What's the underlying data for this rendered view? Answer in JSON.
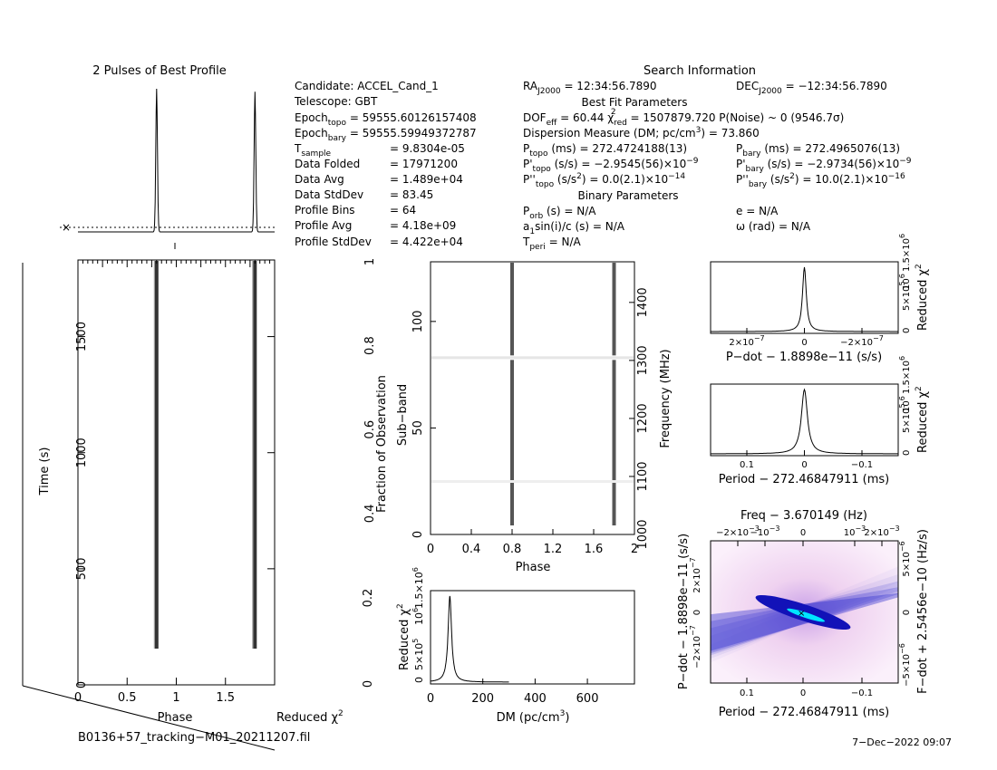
{
  "colors": {
    "accent_blue": "#1414c8",
    "cyan": "#00e5ff",
    "pink": "#f3d7f3",
    "black": "#000000"
  },
  "header": {
    "profile_title": "2 Pulses of Best Profile",
    "search_info_title": "Search Information",
    "best_fit_title": "Best Fit Parameters",
    "binary_title": "Binary Parameters"
  },
  "info_left": [
    {
      "label": "Candidate:  ACCEL_Cand_1",
      "value": ""
    },
    {
      "label": "Telescope:  GBT",
      "value": ""
    },
    {
      "label": "Epoch",
      "sub": "topo",
      "value": " = 59555.60126157408"
    },
    {
      "label": "Epoch",
      "sub": "bary",
      "value": " = 59555.59949372787"
    },
    {
      "label": "T",
      "sub": "sample",
      "value": "=  9.8304e-05"
    },
    {
      "label": "Data Folded",
      "value": "=  17971200"
    },
    {
      "label": "Data Avg",
      "value": "=  1.489e+04"
    },
    {
      "label": "Data StdDev",
      "value": "=  83.45"
    },
    {
      "label": "Profile Bins",
      "value": "=  64"
    },
    {
      "label": "Profile Avg",
      "value": "=  4.18e+09"
    },
    {
      "label": "Profile StdDev",
      "value": "=  4.422e+04"
    }
  ],
  "info_mid": {
    "ra": "RA",
    "ra_sub": "J2000",
    "ra_val": " = 12:34:56.7890",
    "dec": "DEC",
    "dec_sub": "J2000",
    "dec_val": " = −12:34:56.7890",
    "dof": "DOF",
    "dof_sub": "eff",
    "dof_val": " = 60.44  χ",
    "chi_sub": "red",
    "chi_sup": "2",
    "chi_val": " = 1507879.720  P(Noise) ~ 0   (9546.7σ)",
    "dm_text": "Dispersion Measure (DM; pc/cm",
    "dm_sup": "3",
    "dm_val": ") = 73.860",
    "ptopo": "P",
    "ptopo_sub": "topo",
    "ptopo_val": " (ms) =  272.4724188(13)",
    "pbary": "P",
    "pbary_sub": "bary",
    "pbary_val": " (ms) =  272.4965076(13)",
    "pdtopo": "P'",
    "pdtopo_sub": "topo",
    "pdtopo_val": " (s/s) = −2.9545(56)×10",
    "pdtopo_exp": "−9",
    "pdbary": "P'",
    "pdbary_sub": "bary",
    "pdbary_val": " (s/s) = −2.9734(56)×10",
    "pdbary_exp": "−9",
    "pddtopo": "P''",
    "pddtopo_sub": "topo",
    "pddtopo_val": " (s/s",
    "pddtopo_sup": "2",
    "pddtopo_val2": ") = 0.0(2.1)×10",
    "pddtopo_exp": "−14",
    "pddbary": "P''",
    "pddbary_sub": "bary",
    "pddbary_val": " (s/s",
    "pddbary_sup": "2",
    "pddbary_val2": ") =  10.0(2.1)×10",
    "pddbary_exp": "−16",
    "porb": "P",
    "porb_sub": "orb",
    "porb_val": " (s) = N/A",
    "ecc": "e = N/A",
    "asini": "a",
    "asini_sub": "1",
    "asini_val": "sin(i)/c (s) = N/A",
    "omega": "ω (rad) = N/A",
    "tperi": "T",
    "tperi_sub": "peri",
    "tperi_val": " = N/A"
  },
  "footer": {
    "filename": "B0136+57_tracking−M01_20211207.fil",
    "date": "7−Dec−2022 09:07"
  },
  "chart_data": [
    {
      "type": "line",
      "title": "2 Pulses of Best Profile",
      "x_range": [
        0,
        2
      ],
      "pulse_phases": [
        0.8,
        1.8
      ],
      "pulse_peaks": [
        1.0,
        0.98
      ]
    },
    {
      "type": "heatmap",
      "xlabel": "Phase",
      "ylabel": "Time (s)",
      "x_ticks": [
        "0",
        "0.5",
        "1",
        "1.5"
      ],
      "y_ticks": [
        "0",
        "500",
        "1000",
        "1500"
      ],
      "xlim": [
        0,
        2
      ],
      "ylim": [
        0,
        1830
      ],
      "pulse_phases": [
        0.8,
        1.8
      ],
      "signal_start_time_s": 160,
      "corner_label": "Reduced χ",
      "corner_label_sup": "2"
    },
    {
      "type": "heatmap",
      "xlabel": "Phase",
      "ylabel_left": "Fraction of Observation",
      "ylabel_inner": "Sub−band",
      "ylabel_right": "Frequency (MHz)",
      "x_ticks": [
        "0",
        "0.4",
        "0.8",
        "1.2",
        "1.6",
        "2"
      ],
      "y_left_ticks": [
        "0.4",
        "0.6",
        "0.8",
        "1"
      ],
      "y_inner_ticks": [
        "0",
        "50",
        "100"
      ],
      "y_right_ticks": [
        "1000",
        "1100",
        "1200",
        "1300",
        "1400"
      ],
      "pulse_phases": [
        0.8,
        1.8
      ],
      "gap_fraction": [
        0.62,
        0.66
      ]
    },
    {
      "type": "line",
      "xlabel": "DM (pc/cm",
      "xlabel_sup": "3",
      "xlabel_end": ")",
      "ylabel": "Reduced χ",
      "ylabel_sup": "2",
      "x_ticks": [
        "0",
        "200",
        "400",
        "600"
      ],
      "y_ticks": [
        "0",
        "0.2"
      ],
      "y_exp_ticks": [
        "0",
        "5×10",
        "10",
        "1.5×10"
      ],
      "xlim": [
        0,
        780
      ],
      "peak_dm": 73.86
    },
    {
      "type": "line",
      "xlabel": "P−dot − 1.8898e−11 (s/s)",
      "ylabel": "Reduced χ",
      "ylabel_sup": "2",
      "x_ticks": [
        "2×10",
        "0",
        "−2×10"
      ],
      "x_tick_exp": "−7",
      "y_exp_ticks": [
        "0",
        "5×10",
        "10",
        "1.5×10"
      ],
      "y_exp": "6",
      "peak_x": 0
    },
    {
      "type": "line",
      "xlabel": "Period − 272.46847911 (ms)",
      "ylabel": "Reduced χ",
      "ylabel_sup": "2",
      "x_ticks": [
        "0.1",
        "0",
        "−0.1"
      ],
      "y_exp_ticks": [
        "0",
        "5×10",
        "10",
        "1.5×10"
      ],
      "y_exp": "6",
      "peak_x": 0
    },
    {
      "type": "heatmap",
      "title": "Freq − 3.670149 (Hz)",
      "xlabel": "Period − 272.46847911 (ms)",
      "ylabel_left": "P−dot − 1.8898e−11 (s/s)",
      "ylabel_right": "F−dot + 2.5456e−10 (Hz/s)",
      "x_ticks": [
        "0.1",
        "0",
        "−0.1"
      ],
      "top_ticks": [
        "−2×10",
        "−10",
        "0",
        "10",
        "2×10"
      ],
      "top_exp": "−3",
      "left_ticks": [
        "2×10",
        "0",
        "−2×10"
      ],
      "left_exp": "−7",
      "right_ticks": [
        "5×10",
        "0",
        "−5×10"
      ],
      "right_exp": "−6"
    }
  ]
}
